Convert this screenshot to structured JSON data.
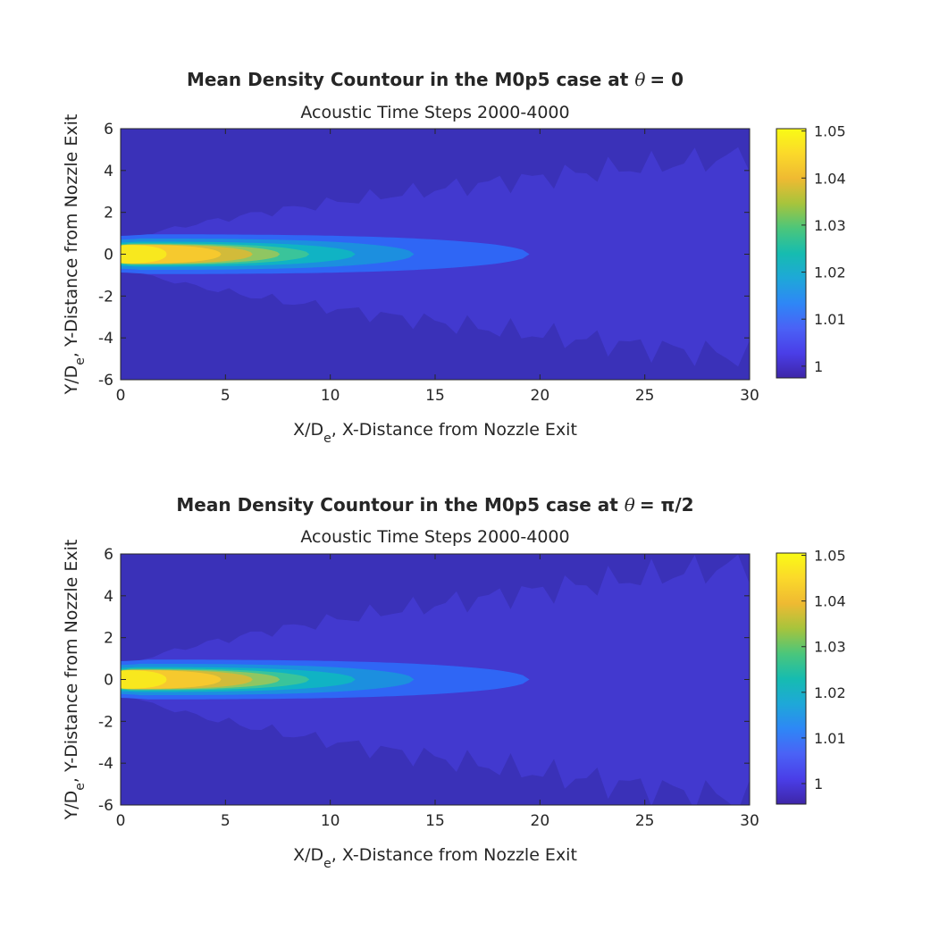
{
  "colors": {
    "background": "#3a31b8",
    "outer_plume": "#4239cf",
    "contour_levels": [
      "#4b46e8",
      "#2f66f5",
      "#1c8fdf",
      "#10b3c4",
      "#3ac49a",
      "#8fc662",
      "#d2bb3a",
      "#f6c92e",
      "#f8e81e"
    ],
    "colormap": [
      "#3e26a8",
      "#4a3ee8",
      "#4a62f6",
      "#2e87f6",
      "#1ea8d8",
      "#16bcb0",
      "#4bc67b",
      "#a7c43c",
      "#efba32",
      "#fbd92a",
      "#f9fb15"
    ]
  },
  "chart_data": [
    {
      "type": "contour",
      "title": "Mean Density Countour in the M0p5 case at",
      "title_symbol": "θ",
      "title_value": "= 0",
      "subtitle": "Acoustic Time Steps 2000-4000",
      "xlabel_main": "X/D",
      "xlabel_sub": "e",
      "xlabel_rest": ", X-Distance from Nozzle Exit",
      "ylabel_main": "Y/D",
      "ylabel_sub": "e",
      "ylabel_rest": ",  Y-Distance from Nozzle Exit",
      "xlim": [
        0,
        30
      ],
      "ylim": [
        -6,
        6
      ],
      "x_ticks": [
        "0",
        "5",
        "10",
        "15",
        "20",
        "25",
        "30"
      ],
      "y_ticks": [
        "6",
        "4",
        "2",
        "0",
        "-2",
        "-4",
        "-6"
      ],
      "colorbar": {
        "range": [
          0.9975,
          1.0505
        ],
        "tick_values": [
          1.05,
          1.04,
          1.03,
          1.02,
          1.01,
          1.0
        ],
        "tick_labels": [
          "1.05",
          "1.04",
          "1.03",
          "1.02",
          "1.01",
          "1"
        ]
      },
      "contours": [
        {
          "level": 1.001,
          "x_end": 31,
          "half_width_max": 4.8
        },
        {
          "level": 1.003,
          "x_end": 19.5,
          "half_width_max": 0.95
        },
        {
          "level": 1.008,
          "x_end": 14.0,
          "half_width_max": 0.75
        },
        {
          "level": 1.015,
          "x_end": 11.2,
          "half_width_max": 0.6
        },
        {
          "level": 1.022,
          "x_end": 9.0,
          "half_width_max": 0.52
        },
        {
          "level": 1.03,
          "x_end": 7.6,
          "half_width_max": 0.48
        },
        {
          "level": 1.037,
          "x_end": 6.3,
          "half_width_max": 0.46
        },
        {
          "level": 1.043,
          "x_end": 4.8,
          "half_width_max": 0.45
        },
        {
          "level": 1.048,
          "x_end": 2.2,
          "half_width_max": 0.44
        }
      ]
    },
    {
      "type": "contour",
      "title": "Mean Density Countour in the M0p5 case at",
      "title_symbol": "θ",
      "title_value": "= π/2",
      "subtitle": "Acoustic Time Steps 2000-4000",
      "xlabel_main": "X/D",
      "xlabel_sub": "e",
      "xlabel_rest": ", X-Distance from Nozzle Exit",
      "ylabel_main": "Y/D",
      "ylabel_sub": "e",
      "ylabel_rest": ",  Y-Distance from Nozzle Exit",
      "xlim": [
        0,
        30
      ],
      "ylim": [
        -6,
        6
      ],
      "x_ticks": [
        "0",
        "5",
        "10",
        "15",
        "20",
        "25",
        "30"
      ],
      "y_ticks": [
        "6",
        "4",
        "2",
        "0",
        "-2",
        "-4",
        "-6"
      ],
      "colorbar": {
        "range": [
          0.9955,
          1.0505
        ],
        "tick_values": [
          1.05,
          1.04,
          1.03,
          1.02,
          1.01,
          1.0
        ],
        "tick_labels": [
          "1.05",
          "1.04",
          "1.03",
          "1.02",
          "1.01",
          "1"
        ]
      },
      "contours": [
        {
          "level": 1.001,
          "x_end": 31,
          "half_width_max": 5.6
        },
        {
          "level": 1.003,
          "x_end": 19.5,
          "half_width_max": 0.95
        },
        {
          "level": 1.008,
          "x_end": 14.0,
          "half_width_max": 0.75
        },
        {
          "level": 1.015,
          "x_end": 11.2,
          "half_width_max": 0.6
        },
        {
          "level": 1.022,
          "x_end": 9.0,
          "half_width_max": 0.52
        },
        {
          "level": 1.03,
          "x_end": 7.6,
          "half_width_max": 0.48
        },
        {
          "level": 1.037,
          "x_end": 6.3,
          "half_width_max": 0.46
        },
        {
          "level": 1.043,
          "x_end": 4.8,
          "half_width_max": 0.45
        },
        {
          "level": 1.048,
          "x_end": 2.2,
          "half_width_max": 0.44
        }
      ]
    }
  ]
}
